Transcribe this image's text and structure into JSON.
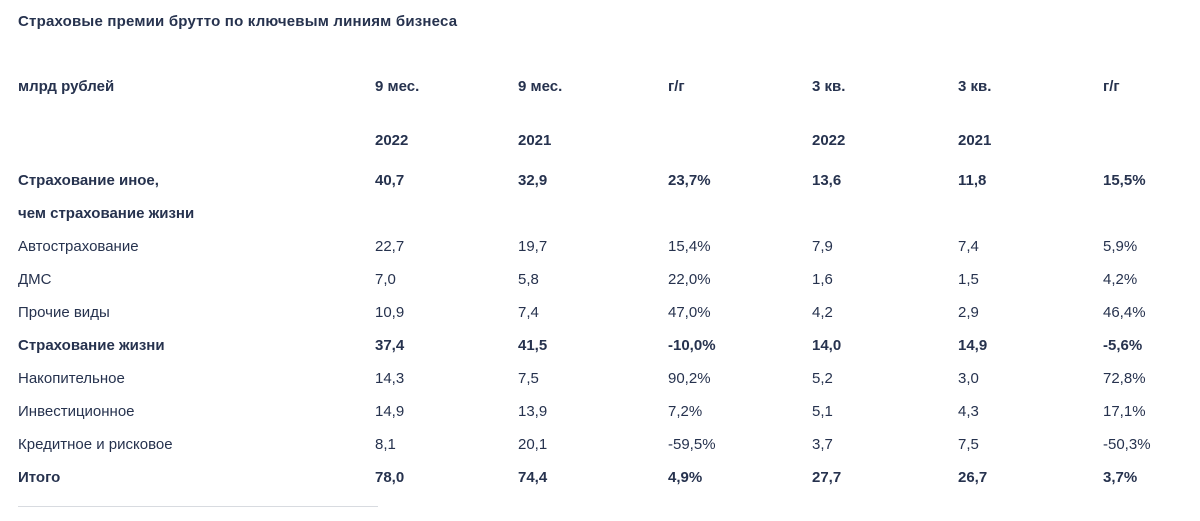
{
  "title": "Страховые премии брутто по ключевым линиям бизнеса",
  "table": {
    "unit_label": "млрд рублей",
    "columns": [
      {
        "period": "9 мес.",
        "year": "2022"
      },
      {
        "period": "9 мес.",
        "year": "2021"
      },
      {
        "period": "г/г",
        "year": ""
      },
      {
        "period": "3 кв.",
        "year": "2022"
      },
      {
        "period": "3 кв.",
        "year": "2021"
      },
      {
        "period": "г/г",
        "year": ""
      }
    ],
    "rows": [
      {
        "label": "Страхование иное,",
        "label2": "чем страхование жизни",
        "bold": true,
        "values": [
          "40,7",
          "32,9",
          "23,7%",
          "13,6",
          "11,8",
          "15,5%"
        ]
      },
      {
        "label": "Автострахование",
        "bold": false,
        "values": [
          "22,7",
          "19,7",
          "15,4%",
          "7,9",
          "7,4",
          "5,9%"
        ]
      },
      {
        "label": "ДМС",
        "bold": false,
        "values": [
          "7,0",
          "5,8",
          "22,0%",
          "1,6",
          "1,5",
          "4,2%"
        ]
      },
      {
        "label": "Прочие виды",
        "bold": false,
        "values": [
          "10,9",
          "7,4",
          "47,0%",
          "4,2",
          "2,9",
          "46,4%"
        ]
      },
      {
        "label": "Страхование жизни",
        "bold": true,
        "values": [
          "37,4",
          "41,5",
          "-10,0%",
          "14,0",
          "14,9",
          "-5,6%"
        ]
      },
      {
        "label": "Накопительное",
        "bold": false,
        "values": [
          "14,3",
          "7,5",
          "90,2%",
          "5,2",
          "3,0",
          "72,8%"
        ]
      },
      {
        "label": "Инвестиционное",
        "bold": false,
        "values": [
          "14,9",
          "13,9",
          "7,2%",
          "5,1",
          "4,3",
          "17,1%"
        ]
      },
      {
        "label": "Кредитное и рисковое",
        "bold": false,
        "values": [
          "8,1",
          "20,1",
          "-59,5%",
          "3,7",
          "7,5",
          "-50,3%"
        ]
      },
      {
        "label": "Итого",
        "bold": true,
        "values": [
          "78,0",
          "74,4",
          "4,9%",
          "27,7",
          "26,7",
          "3,7%"
        ]
      }
    ]
  }
}
